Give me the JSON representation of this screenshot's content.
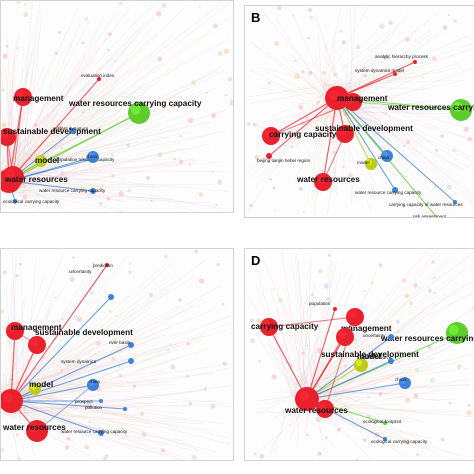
{
  "panels": [
    {
      "letter": "",
      "hub": "management",
      "nodes": [
        {
          "label": "management",
          "c": "red",
          "r": 9,
          "lc": "red",
          "big": 1
        },
        {
          "label": "water resources carrying capacity",
          "c": "green",
          "r": 11,
          "lc": "green",
          "big": 1
        },
        {
          "label": "sustainable development",
          "c": "red",
          "r": 9,
          "lc": "red",
          "big": 1
        },
        {
          "label": "model",
          "c": "olive",
          "r": 6,
          "lc": "olive",
          "big": 1
        },
        {
          "label": "water resources",
          "c": "red",
          "r": 11,
          "lc": "red",
          "big": 1
        },
        {
          "label": "water resource carrying capacity",
          "c": "blue",
          "r": 3,
          "lc": "blue",
          "big": 0
        },
        {
          "label": "evaluation index",
          "c": "red",
          "r": 2,
          "lc": "red",
          "big": 0
        },
        {
          "label": "system dynamics",
          "c": "blue",
          "r": 3,
          "lc": "blue",
          "big": 0
        },
        {
          "label": "population resource capacity",
          "c": "blue",
          "r": 3,
          "lc": "blue",
          "big": 0
        },
        {
          "label": "china",
          "c": "blue",
          "r": 6,
          "lc": "blue",
          "big": 0
        },
        {
          "label": "ecological carrying capacity",
          "c": "blue",
          "r": 2,
          "lc": "blue",
          "big": 0
        }
      ]
    },
    {
      "letter": "B",
      "hub": "management",
      "nodes": [
        {
          "label": "management",
          "c": "red",
          "r": 9,
          "lc": "red",
          "big": 1
        },
        {
          "label": "water resources carrying capacity",
          "c": "green",
          "r": 11,
          "lc": "green",
          "big": 1
        },
        {
          "label": "carrying capacity",
          "c": "red",
          "r": 9,
          "lc": "red",
          "big": 1
        },
        {
          "label": "sustainable development",
          "c": "red",
          "r": 9,
          "lc": "red",
          "big": 1
        },
        {
          "label": "model",
          "c": "olive",
          "r": 6,
          "lc": "olive",
          "big": 0
        },
        {
          "label": "water resources",
          "c": "red",
          "r": 9,
          "lc": "red",
          "big": 1
        },
        {
          "label": "water resource carrying capacity",
          "c": "blue",
          "r": 3,
          "lc": "blue",
          "big": 0
        },
        {
          "label": "analytic hierarchy process",
          "c": "red",
          "r": 2,
          "lc": "red",
          "big": 0
        },
        {
          "label": "system dynamics model",
          "c": "red",
          "r": 2,
          "lc": "red",
          "big": 0
        },
        {
          "label": "china",
          "c": "blue",
          "r": 6,
          "lc": "blue",
          "big": 0
        },
        {
          "label": "beijing tianjin hebei region",
          "c": "red",
          "r": 3,
          "lc": "red",
          "big": 0
        },
        {
          "label": "carrying capacity of water resources",
          "c": "blue",
          "r": 2,
          "lc": "blue",
          "big": 0
        },
        {
          "label": "risk assessment",
          "c": "green",
          "r": 2,
          "lc": "green",
          "big": 0
        }
      ]
    },
    {
      "letter": "",
      "hub": "management",
      "nodes": [
        {
          "label": "management",
          "c": "red",
          "r": 9,
          "lc": "red",
          "big": 1
        },
        {
          "label": "sustainable development",
          "c": "red",
          "r": 9,
          "lc": "red",
          "big": 1
        },
        {
          "label": "model",
          "c": "olive",
          "r": 6,
          "lc": "olive",
          "big": 1
        },
        {
          "label": "water resources",
          "c": "red",
          "r": 11,
          "lc": "red",
          "big": 1
        },
        {
          "label": "uncertainty",
          "c": "blue",
          "r": 3,
          "lc": "blue",
          "big": 0
        },
        {
          "label": "river basin",
          "c": "blue",
          "r": 3,
          "lc": "blue",
          "big": 0
        },
        {
          "label": "system dynamics",
          "c": "blue",
          "r": 3,
          "lc": "blue",
          "big": 0
        },
        {
          "label": "china",
          "c": "blue",
          "r": 6,
          "lc": "blue",
          "big": 0
        },
        {
          "label": "prospect",
          "c": "blue",
          "r": 2,
          "lc": "blue",
          "big": 0
        },
        {
          "label": "pollution",
          "c": "blue",
          "r": 2,
          "lc": "blue",
          "big": 0
        },
        {
          "label": "water resource carrying capacity",
          "c": "blue",
          "r": 3,
          "lc": "blue",
          "big": 0
        },
        {
          "label": "prediction",
          "c": "red",
          "r": 2,
          "lc": "red",
          "big": 0
        }
      ]
    },
    {
      "letter": "D",
      "hub": "management",
      "nodes": [
        {
          "label": "management",
          "c": "red",
          "r": 9,
          "lc": "red",
          "big": 1
        },
        {
          "label": "water resources carrying capacity",
          "c": "green",
          "r": 11,
          "lc": "green",
          "big": 1
        },
        {
          "label": "carrying capacity",
          "c": "red",
          "r": 9,
          "lc": "red",
          "big": 1
        },
        {
          "label": "sustainable development",
          "c": "red",
          "r": 9,
          "lc": "red",
          "big": 1
        },
        {
          "label": "model",
          "c": "olive",
          "r": 7,
          "lc": "olive",
          "big": 1
        },
        {
          "label": "water resources",
          "c": "red",
          "r": 9,
          "lc": "red",
          "big": 1
        },
        {
          "label": "water resource",
          "c": "blue",
          "r": 3,
          "lc": "blue",
          "big": 0
        },
        {
          "label": "population",
          "c": "red",
          "r": 2,
          "lc": "red",
          "big": 0
        },
        {
          "label": "uncertainty",
          "c": "blue",
          "r": 3,
          "lc": "blue",
          "big": 0
        },
        {
          "label": "china",
          "c": "blue",
          "r": 6,
          "lc": "blue",
          "big": 0
        },
        {
          "label": "ecological footprint",
          "c": "green",
          "r": 2,
          "lc": "green",
          "big": 0
        },
        {
          "label": "ecological carrying capacity",
          "c": "blue",
          "r": 2,
          "lc": "blue",
          "big": 0
        }
      ]
    }
  ],
  "colors": {
    "red": "#e8212d",
    "green": "#5fcc2e",
    "blue": "#3f80d8",
    "olive": "#bccb1c",
    "purple": "#9a64d6",
    "pink": "#f5b7c4"
  }
}
